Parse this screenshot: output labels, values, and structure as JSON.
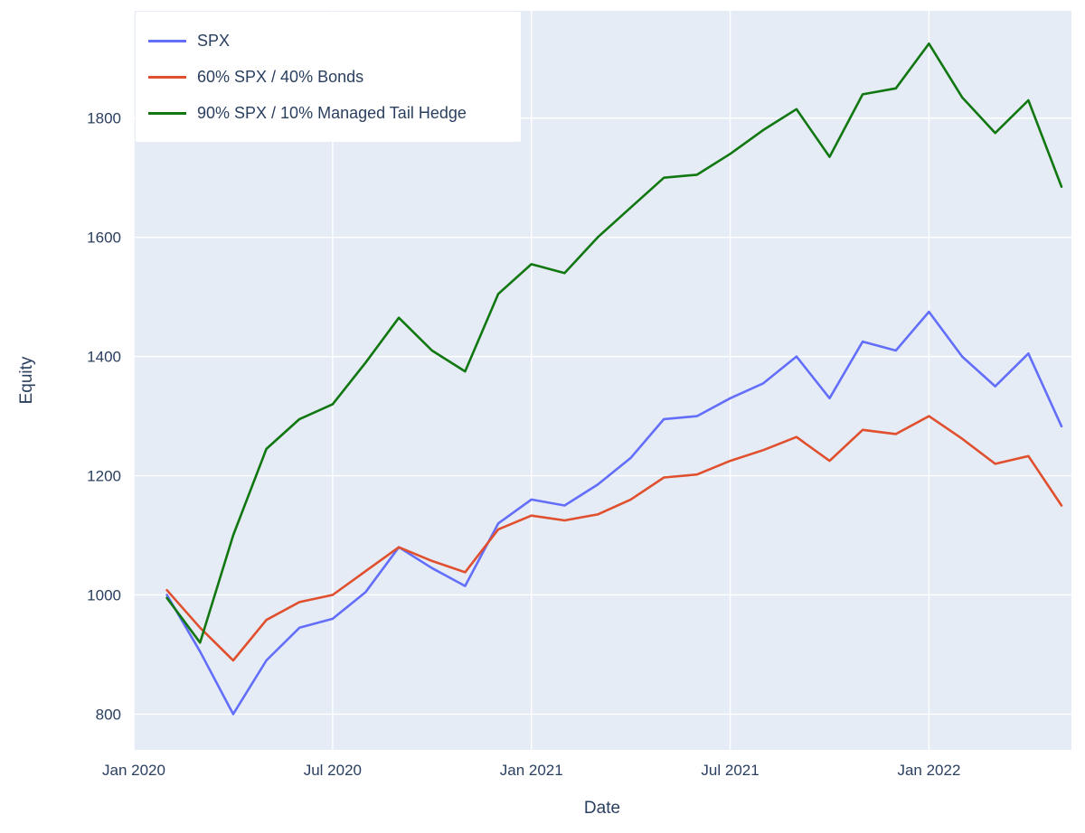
{
  "chart_data": {
    "type": "line",
    "title": "",
    "xlabel": "Date",
    "ylabel": "Equity",
    "plot_bg": "#e5ecf6",
    "grid_color": "#ffffff",
    "text_color": "#2a3f5f",
    "legend_bg": "#ffffff",
    "legend_position": "top-left",
    "grid": "on",
    "xlim_months": [
      0,
      28.3
    ],
    "ylim": [
      740,
      1980
    ],
    "y_ticks": [
      800,
      1000,
      1200,
      1400,
      1600,
      1800
    ],
    "x_ticks": [
      {
        "month_offset": 0,
        "label": "Jan 2020"
      },
      {
        "month_offset": 6,
        "label": "Jul 2020"
      },
      {
        "month_offset": 12,
        "label": "Jan 2021"
      },
      {
        "month_offset": 18,
        "label": "Jul 2021"
      },
      {
        "month_offset": 24,
        "label": "Jan 2022"
      }
    ],
    "x_dates": [
      "2020-02",
      "2020-03",
      "2020-04",
      "2020-05",
      "2020-06",
      "2020-07",
      "2020-08",
      "2020-09",
      "2020-10",
      "2020-11",
      "2020-12",
      "2021-01",
      "2021-02",
      "2021-03",
      "2021-04",
      "2021-05",
      "2021-06",
      "2021-07",
      "2021-08",
      "2021-09",
      "2021-10",
      "2021-11",
      "2021-12",
      "2022-01",
      "2022-02",
      "2022-03",
      "2022-04",
      "2022-05"
    ],
    "series": [
      {
        "name": "SPX",
        "color": "#636efa",
        "values": [
          1000,
          905,
          800,
          890,
          945,
          960,
          1005,
          1080,
          1045,
          1015,
          1120,
          1160,
          1150,
          1185,
          1230,
          1295,
          1300,
          1330,
          1355,
          1400,
          1330,
          1425,
          1410,
          1475,
          1400,
          1350,
          1405,
          1283
        ]
      },
      {
        "name": "60% SPX / 40% Bonds",
        "color": "#e0502e",
        "values": [
          1008,
          945,
          890,
          958,
          988,
          1000,
          1040,
          1080,
          1057,
          1038,
          1110,
          1133,
          1125,
          1135,
          1160,
          1197,
          1202,
          1225,
          1243,
          1265,
          1225,
          1277,
          1270,
          1300,
          1262,
          1220,
          1233,
          1150
        ]
      },
      {
        "name": "90% SPX / 10% Managed Tail Hedge",
        "color": "#117711",
        "values": [
          995,
          920,
          1100,
          1245,
          1295,
          1320,
          1390,
          1465,
          1410,
          1375,
          1505,
          1555,
          1540,
          1600,
          1650,
          1700,
          1705,
          1740,
          1780,
          1815,
          1735,
          1840,
          1850,
          1925,
          1835,
          1775,
          1830,
          1685
        ]
      }
    ]
  }
}
